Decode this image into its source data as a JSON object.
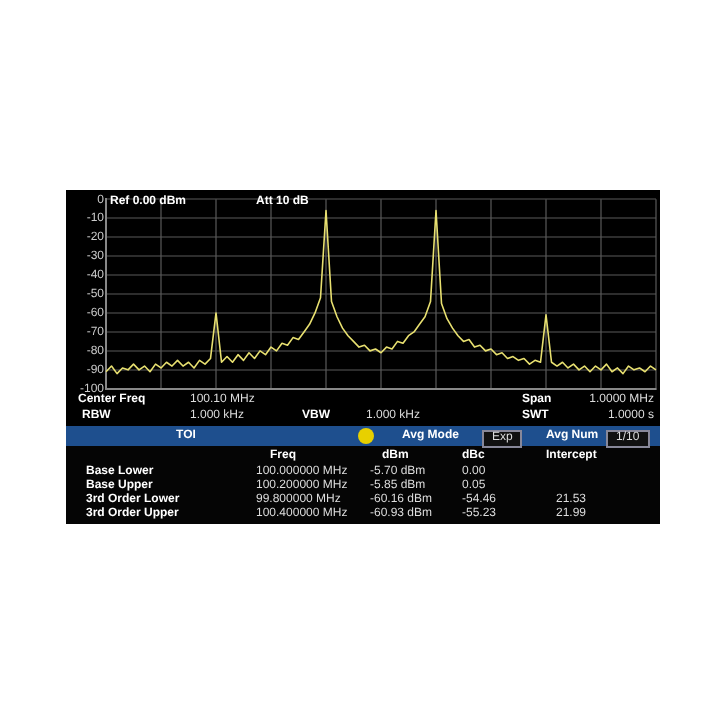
{
  "chart_data": {
    "type": "line",
    "marker": "none",
    "grid": true,
    "tick_labels": "y",
    "ylim": [
      -100,
      0
    ],
    "categories": [
      null,
      null,
      null,
      null,
      null,
      null,
      null,
      null,
      null,
      null,
      null,
      null,
      null,
      null,
      null,
      null,
      null,
      null,
      null,
      null,
      null,
      null,
      null,
      null,
      null,
      null,
      null,
      null,
      null,
      null,
      null,
      null,
      null,
      null,
      null,
      null,
      null,
      null,
      null,
      null,
      null,
      null,
      null,
      null,
      null,
      null,
      null,
      null,
      null,
      null,
      null,
      null,
      null,
      null,
      null,
      null,
      null,
      null,
      null,
      null,
      null,
      null,
      null,
      null,
      null,
      null,
      null,
      null,
      null,
      null,
      null,
      null,
      null,
      null,
      null,
      null,
      null,
      null,
      null,
      null,
      null,
      null,
      null,
      null,
      null,
      null,
      null,
      null,
      null,
      null,
      null,
      null,
      null,
      null,
      null,
      null,
      null,
      null,
      null,
      null,
      null
    ],
    "yticks": [
      0,
      -10,
      -20,
      -30,
      -40,
      -50,
      -60,
      -70,
      -80,
      -90,
      -100
    ],
    "series": [
      {
        "color": "#e8e070",
        "values": [
          -91,
          -88,
          -92,
          -89,
          -90,
          -87,
          -90,
          -88,
          -91,
          -87,
          -89,
          -86,
          -88,
          -85,
          -88,
          -86,
          -89,
          -85,
          -87,
          -84,
          -60,
          -86,
          -83,
          -86,
          -82,
          -85,
          -81,
          -84,
          -80,
          -82,
          -78,
          -80,
          -76,
          -77,
          -73,
          -74,
          -70,
          -66,
          -60,
          -52,
          -6,
          -54,
          -62,
          -68,
          -72,
          -75,
          -78,
          -77,
          -80,
          -79,
          -81,
          -78,
          -79,
          -75,
          -76,
          -72,
          -70,
          -66,
          -62,
          -54,
          -6,
          -55,
          -63,
          -68,
          -72,
          -75,
          -74,
          -78,
          -77,
          -80,
          -79,
          -82,
          -81,
          -84,
          -83,
          -85,
          -84,
          -87,
          -85,
          -86,
          -61,
          -86,
          -88,
          -86,
          -89,
          -87,
          -90,
          -88,
          -91,
          -88,
          -90,
          -87,
          -91,
          -89,
          -92,
          -88,
          -90,
          -89,
          -91,
          -88,
          -90
        ]
      }
    ],
    "annotations": [
      "Ref 0.00 dBm",
      "Att 10 dB",
      "Center Freq",
      "100.10 MHz",
      "Span",
      "1.0000 MHz",
      "RBW",
      "1.000 kHz",
      "VBW",
      "1.000 kHz",
      "SWT",
      "1.0000 s",
      "TOI",
      "Avg Mode",
      "Exp",
      "Avg Num",
      "1/10",
      "Freq",
      "dBm",
      "dBc",
      "Intercept",
      "Base Lower",
      "100.000000 MHz",
      "-5.70 dBm",
      "0.00",
      "Base Upper",
      "100.200000 MHz",
      "-5.85 dBm",
      "0.05",
      "3rd Order Lower",
      "99.800000 MHz",
      "-60.16 dBm",
      "-54.46",
      "21.53",
      "3rd Order Upper",
      "100.400000 MHz",
      "-60.93 dBm",
      "-55.23",
      "21.99"
    ]
  }
}
